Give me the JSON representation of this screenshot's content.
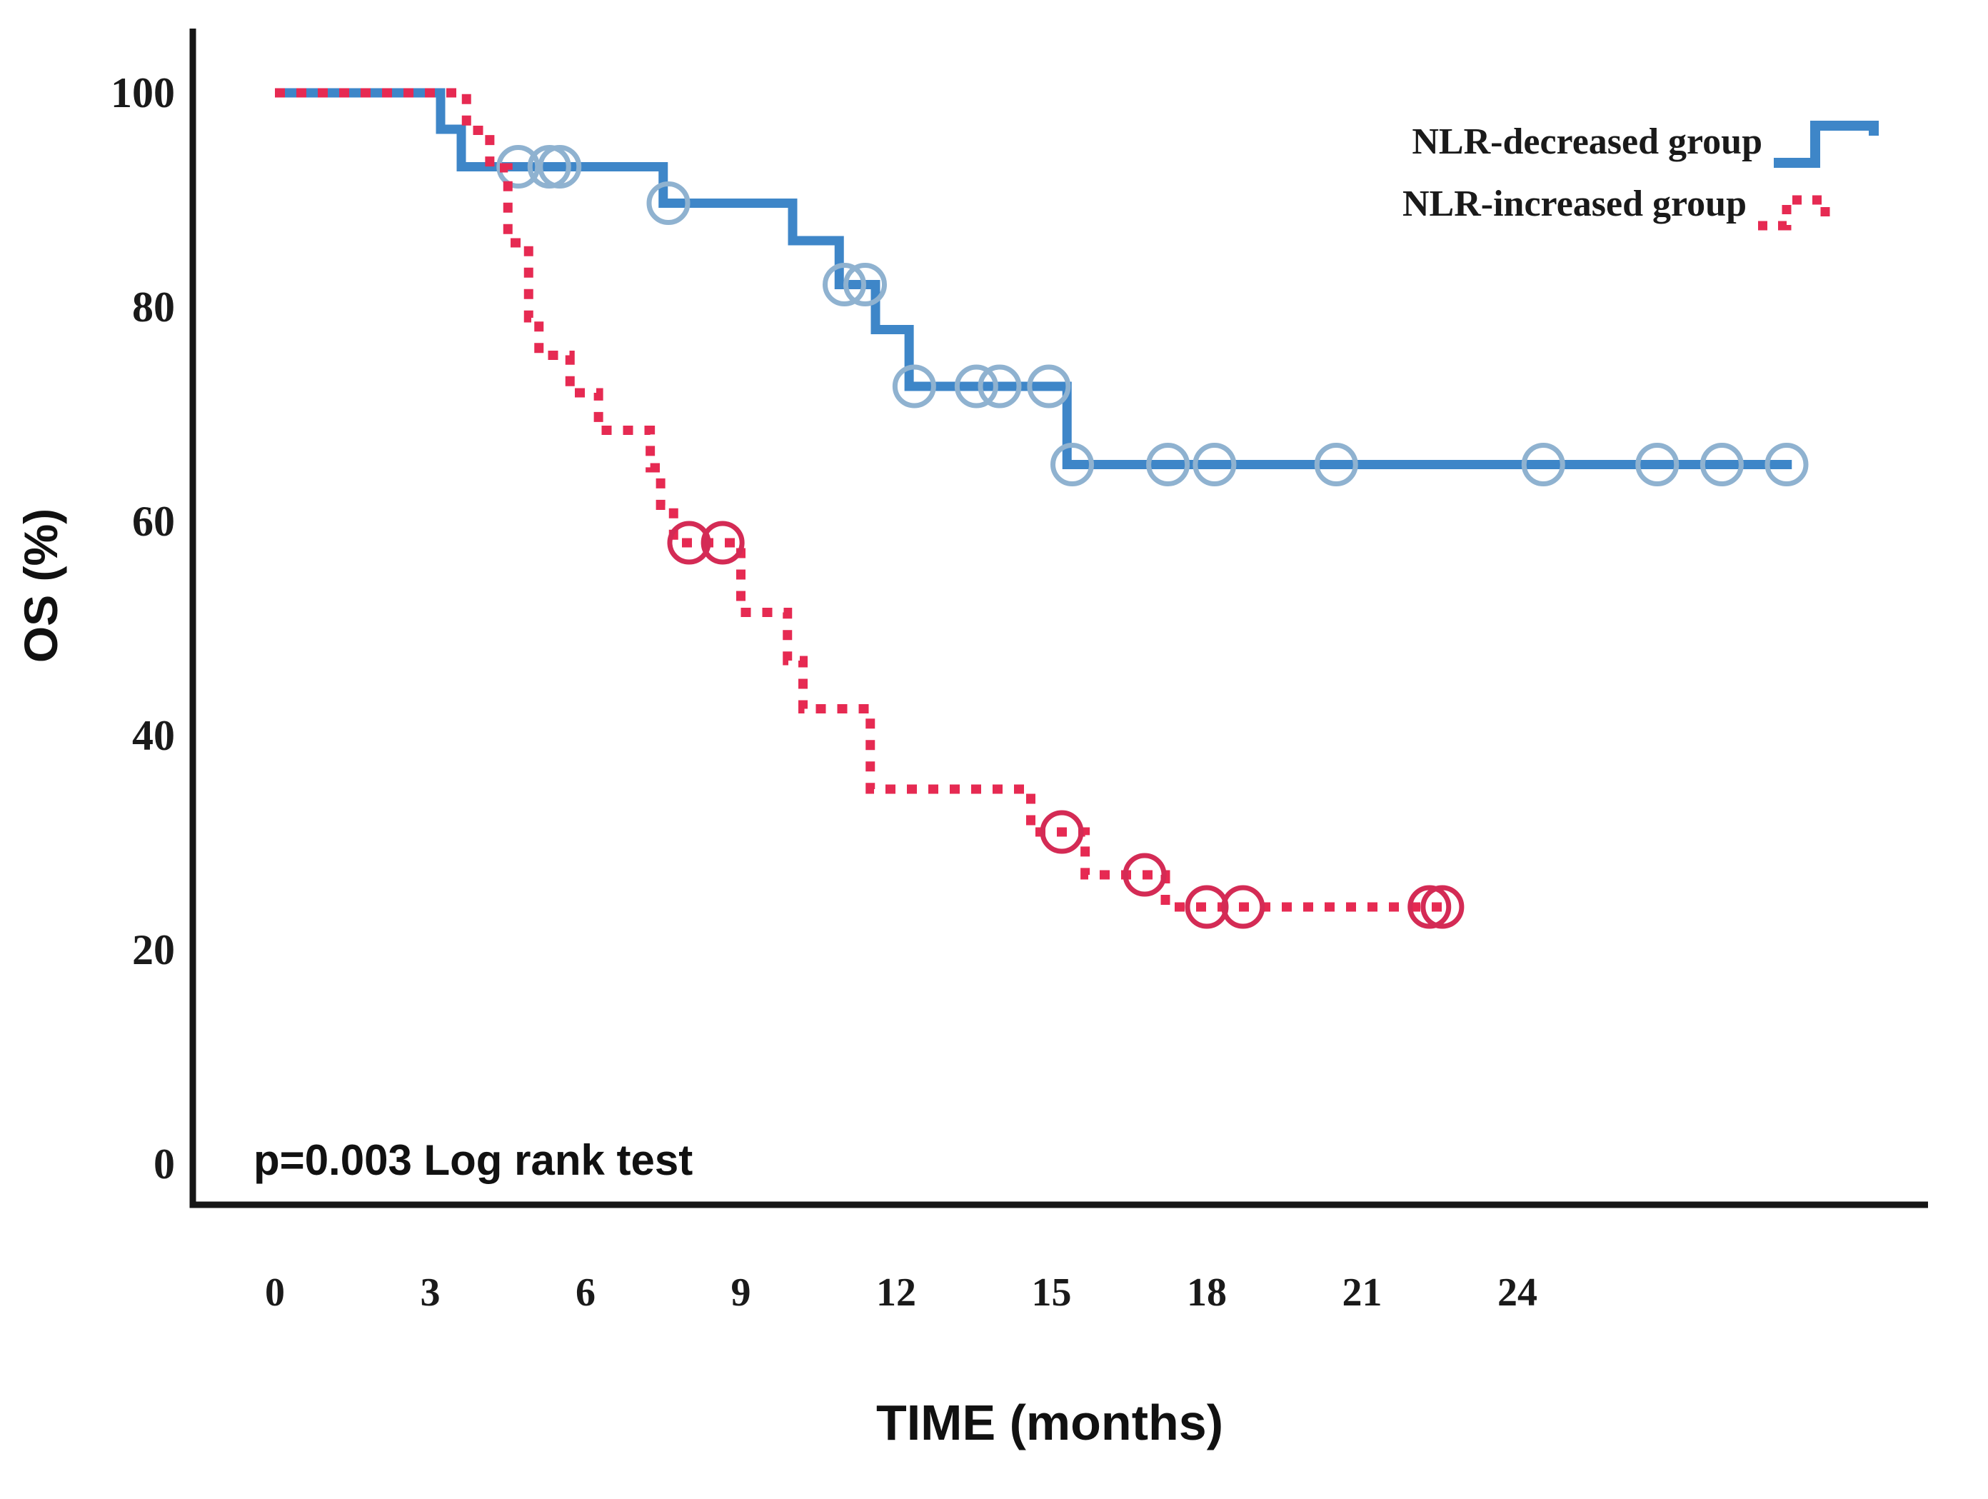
{
  "chart_data": {
    "type": "line",
    "subtype": "kaplan-meier-step",
    "title": "",
    "xlabel": "TIME (months)",
    "ylabel": "OS (%)",
    "annotation": "p=0.003 Log rank test",
    "x_ticks": [
      0,
      3,
      6,
      9,
      12,
      15,
      18,
      21,
      24
    ],
    "y_ticks": [
      0,
      20,
      40,
      60,
      80,
      100
    ],
    "xlim": [
      0,
      32
    ],
    "ylim": [
      0,
      100
    ],
    "grid": false,
    "legend_position": "top-right",
    "axis_color": "#161616",
    "series": [
      {
        "name": "NLR-decreased group",
        "color": "#3E86C8",
        "censor_color": "#8FB2D0",
        "style": "solid",
        "start": [
          0,
          100
        ],
        "end_t": 29.3,
        "events": [
          [
            3.2,
            96.6
          ],
          [
            3.6,
            93.1
          ],
          [
            7.5,
            89.7
          ],
          [
            10.0,
            86.2
          ],
          [
            10.9,
            82.1
          ],
          [
            11.6,
            77.9
          ],
          [
            12.25,
            72.6
          ],
          [
            15.3,
            65.3
          ]
        ],
        "censors": [
          [
            4.7,
            93.1
          ],
          [
            5.3,
            93.1
          ],
          [
            5.5,
            93.1
          ],
          [
            7.6,
            89.7
          ],
          [
            11.0,
            82.1
          ],
          [
            11.4,
            82.1
          ],
          [
            12.35,
            72.6
          ],
          [
            13.55,
            72.6
          ],
          [
            14.0,
            72.6
          ],
          [
            14.95,
            72.6
          ],
          [
            15.4,
            65.3
          ],
          [
            17.25,
            65.3
          ],
          [
            18.15,
            65.3
          ],
          [
            20.5,
            65.3
          ],
          [
            24.5,
            65.3
          ],
          [
            26.7,
            65.3
          ],
          [
            27.95,
            65.3
          ],
          [
            29.2,
            65.3
          ]
        ]
      },
      {
        "name": "NLR-increased group",
        "color": "#E62A52",
        "censor_color": "#D42B55",
        "style": "dotted",
        "start": [
          0,
          100
        ],
        "end_t": 22.75,
        "events": [
          [
            3.7,
            96.5
          ],
          [
            4.15,
            93.0
          ],
          [
            4.5,
            86.0
          ],
          [
            4.9,
            79.0
          ],
          [
            5.1,
            75.5
          ],
          [
            5.7,
            72.0
          ],
          [
            6.25,
            68.5
          ],
          [
            7.25,
            65.0
          ],
          [
            7.45,
            61.5
          ],
          [
            7.7,
            58.0
          ],
          [
            9.0,
            51.5
          ],
          [
            9.9,
            47.0
          ],
          [
            10.2,
            42.5
          ],
          [
            11.5,
            35.0
          ],
          [
            14.6,
            31.0
          ],
          [
            15.65,
            27.0
          ],
          [
            17.2,
            24.0
          ]
        ],
        "censors": [
          [
            8.0,
            58.0
          ],
          [
            8.65,
            58.0
          ],
          [
            15.2,
            31.0
          ],
          [
            16.8,
            27.0
          ],
          [
            18.0,
            24.0
          ],
          [
            18.7,
            24.0
          ],
          [
            22.3,
            24.0
          ],
          [
            22.55,
            24.0
          ]
        ]
      }
    ]
  }
}
